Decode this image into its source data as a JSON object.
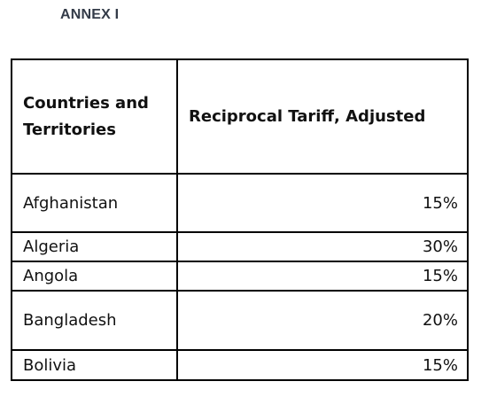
{
  "header": {
    "title": "ANNEX I"
  },
  "table": {
    "columns": [
      "Countries and Territories",
      "Reciprocal Tariff, Adjusted"
    ],
    "rows": [
      [
        "Afghanistan",
        "15%"
      ],
      [
        "Algeria",
        "30%"
      ],
      [
        "Angola",
        "15%"
      ],
      [
        "Bangladesh",
        "20%"
      ],
      [
        "Bolivia",
        "15%"
      ]
    ]
  }
}
